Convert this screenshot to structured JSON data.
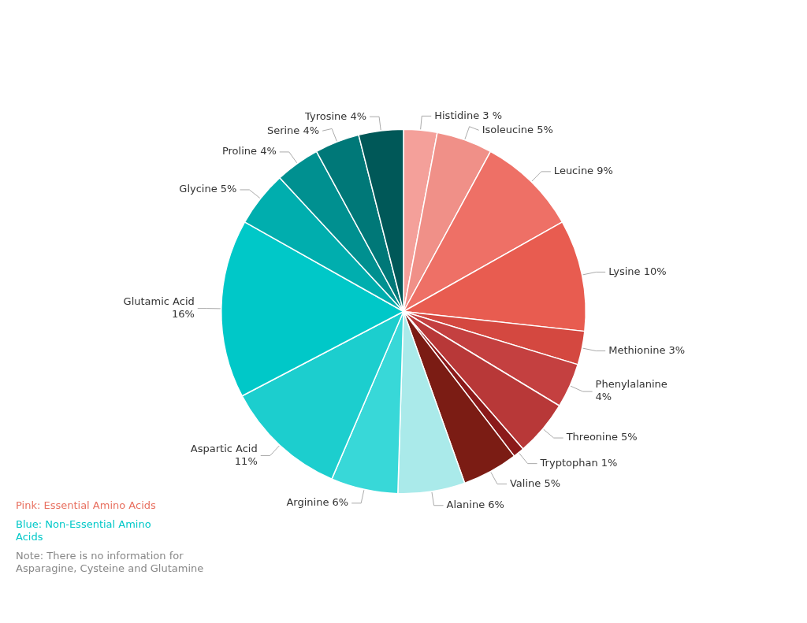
{
  "chart_data": {
    "type": "pie",
    "categories": [
      "Histidine 3 %",
      "Isoleucine 5%",
      "Leucine 9%",
      "Lysine 10%",
      "Methionine 3%",
      "Phenylalanine\n4%",
      "Threonine 5%",
      "Tryptophan 1%",
      "Valine 5%",
      "Alanine 6%",
      "Arginine 6%",
      "Aspartic Acid\n11%",
      "Glutamic Acid\n16%",
      "Glycine 5%",
      "Proline 4%",
      "Serine 4%",
      "Tyrosine 4%"
    ],
    "values": [
      3,
      5,
      9,
      10,
      3,
      4,
      5,
      1,
      5,
      6,
      6,
      11,
      16,
      5,
      4,
      4,
      4
    ],
    "colors": [
      "#F4A09A",
      "#F09088",
      "#EE7066",
      "#E85C50",
      "#D44840",
      "#C44040",
      "#B83838",
      "#8B1A1A",
      "#7B1C14",
      "#AAEAEA",
      "#38D8D8",
      "#1CCECE",
      "#00C8C8",
      "#00AEAE",
      "#009090",
      "#007878",
      "#005858"
    ],
    "annotations": [
      {
        "text": "Pink: Essential Amino Acids",
        "color": "#E87060"
      },
      {
        "text": "Blue: Non-Essential Amino\nAcids",
        "color": "#00C8C8"
      },
      {
        "text": "Note: There is no information for\nAsparagine, Cysteine and Glutamine",
        "color": "#888888"
      }
    ]
  }
}
